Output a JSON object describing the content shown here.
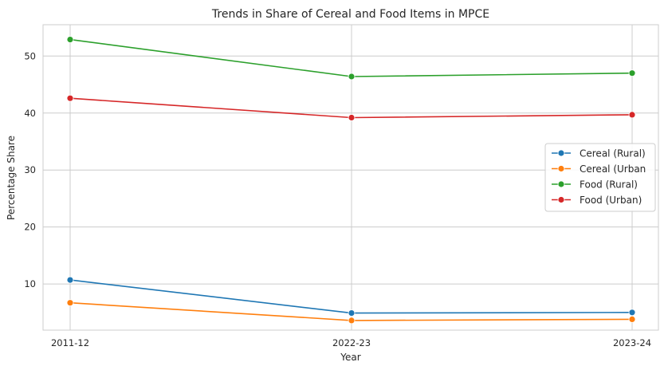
{
  "chart_data": {
    "type": "line",
    "title": "Trends in Share of Cereal and Food Items in MPCE",
    "xlabel": "Year",
    "ylabel": "Percentage Share",
    "categories": [
      "2011-12",
      "2022-23",
      "2023-24"
    ],
    "ylim": [
      1.9,
      55.5
    ],
    "yticks": [
      10,
      20,
      30,
      40,
      50
    ],
    "grid": true,
    "legend_position": "center-right",
    "series": [
      {
        "name": "Cereal (Rural)",
        "values": [
          10.7,
          4.9,
          5.0
        ],
        "color": "#1f77b4"
      },
      {
        "name": "Cereal (Urban",
        "values": [
          6.7,
          3.6,
          3.8
        ],
        "color": "#ff7f0e"
      },
      {
        "name": "Food (Rural)",
        "values": [
          52.9,
          46.4,
          47.0
        ],
        "color": "#2ca02c"
      },
      {
        "name": "Food (Urban)",
        "values": [
          42.6,
          39.2,
          39.7
        ],
        "color": "#d62728"
      }
    ]
  }
}
